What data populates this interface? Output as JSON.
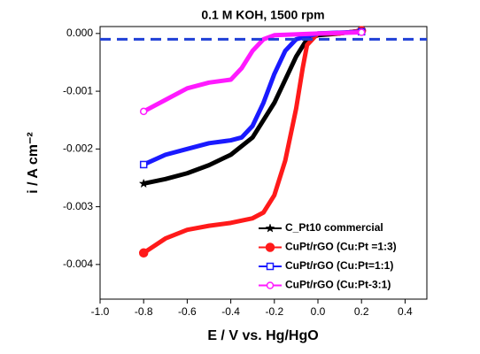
{
  "chart_data": {
    "type": "line",
    "title": "0.1 M KOH, 1500 rpm",
    "x_label": "E / V vs. Hg/HgO",
    "y_label": "i / A cm⁻²",
    "xlim": [
      -1.0,
      0.5
    ],
    "xticks": [
      {
        "value": -1.0,
        "label": "-1.0"
      },
      -0.8,
      -0.6,
      -0.4,
      -0.2,
      {
        "value": 0,
        "label": "0.0"
      },
      0.2,
      0.4
    ],
    "ylim": [
      -0.0046,
      0.00012
    ],
    "yticks": [
      {
        "value": 0,
        "label": "0.000"
      },
      -0.001,
      -0.002,
      -0.003,
      -0.004
    ],
    "reference_line": {
      "y": -0.0001,
      "color": "#1f3fd6"
    },
    "legend": "lower right",
    "series": [
      {
        "name": "C_Pt10 commercial",
        "color": "#000000",
        "marker": "star",
        "x": [
          -0.8,
          -0.7,
          -0.6,
          -0.5,
          -0.4,
          -0.3,
          -0.2,
          -0.15,
          -0.1,
          -0.05,
          0,
          0.1,
          0.2
        ],
        "values": [
          -0.0026,
          -0.00252,
          -0.00242,
          -0.00228,
          -0.0021,
          -0.0018,
          -0.0012,
          -0.0008,
          -0.0004,
          -0.0001,
          -3e-05,
          0,
          5e-05
        ]
      },
      {
        "name": "CuPt/rGO (Cu:Pt =1:3)",
        "color": "#ff1a1a",
        "marker": "circle",
        "x": [
          -0.8,
          -0.7,
          -0.6,
          -0.5,
          -0.4,
          -0.3,
          -0.25,
          -0.2,
          -0.15,
          -0.1,
          -0.07,
          -0.05,
          0,
          0.1,
          0.2
        ],
        "values": [
          -0.0038,
          -0.00355,
          -0.0034,
          -0.00333,
          -0.00328,
          -0.0032,
          -0.0031,
          -0.0028,
          -0.0022,
          -0.0013,
          -0.0006,
          -0.0002,
          0,
          0,
          5e-05
        ]
      },
      {
        "name": "CuPt/rGO (Cu:Pt=1:1)",
        "color": "#1a1aff",
        "marker": "square-open",
        "x": [
          -0.8,
          -0.7,
          -0.6,
          -0.5,
          -0.4,
          -0.35,
          -0.3,
          -0.25,
          -0.2,
          -0.15,
          -0.1,
          0,
          0.2
        ],
        "values": [
          -0.00227,
          -0.0021,
          -0.002,
          -0.0019,
          -0.00185,
          -0.0018,
          -0.0016,
          -0.0012,
          -0.0007,
          -0.0003,
          -0.0001,
          0,
          3e-05
        ]
      },
      {
        "name": "CuPt/rGO (Cu:Pt-3:1)",
        "color": "#ff1aff",
        "marker": "circle-open",
        "x": [
          -0.8,
          -0.7,
          -0.6,
          -0.5,
          -0.4,
          -0.35,
          -0.3,
          -0.25,
          -0.2,
          0,
          0.2
        ],
        "values": [
          -0.00135,
          -0.00115,
          -0.00095,
          -0.00085,
          -0.0008,
          -0.0006,
          -0.0003,
          -0.0001,
          -3e-05,
          0,
          2e-05
        ]
      }
    ]
  }
}
